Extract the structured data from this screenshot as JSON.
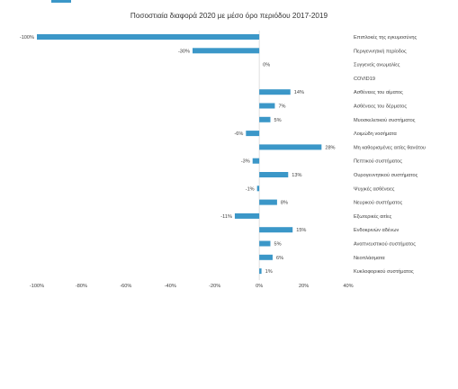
{
  "colors": {
    "bar": "#3b97c8",
    "text": "#404040",
    "grid": "#d9d9d9"
  },
  "chart_data": {
    "type": "bar",
    "orientation": "horizontal",
    "title": "Ποσοστιαία διαφορά 2020 με μέσο όρο περιόδου 2017-2019",
    "categories": [
      "Επιπλοκές της εγκυμοσύνης",
      "Περιγεννητική περίοδος",
      "Συγγενείς ανωμαλίες",
      "COVID19",
      "Ασθένειες του αίματος",
      "Ασθένειες του δέρματος",
      "Μυοσκελετικού συστήματος",
      "Λοιμώδη νοσήματα",
      "Μη καθορισμένες αιτίες θανάτου",
      "Πεπτικού συστήματος",
      "Ουρογεννητικού συστήματος",
      "Ψυχικές ασθένειες",
      "Νευρικού συστήματος",
      "Εξωτερικές αιτίες",
      "Ενδοκρινών αδένων",
      "Αναπνευστικού συστήματος",
      "Νεοπλάσματα",
      "Κυκλοφορικού συστήματος"
    ],
    "values": [
      -100,
      -30,
      0,
      null,
      14,
      7,
      5,
      -6,
      28,
      -3,
      13,
      -1,
      8,
      -11,
      15,
      5,
      6,
      1
    ],
    "data_labels": [
      "-100%",
      "-30%",
      "0%",
      "",
      "14%",
      "7%",
      "5%",
      "-6%",
      "28%",
      "-3%",
      "13%",
      "-1%",
      "8%",
      "-11%",
      "15%",
      "5%",
      "6%",
      "1%"
    ],
    "xlim": [
      -100,
      40
    ],
    "x_ticks": [
      -100,
      -80,
      -60,
      -40,
      -20,
      0,
      20,
      40
    ],
    "x_tick_labels": [
      "-100%",
      "-80%",
      "-60%",
      "-40%",
      "-20%",
      "0%",
      "20%",
      "40%"
    ],
    "legend": "none",
    "grid": false
  }
}
